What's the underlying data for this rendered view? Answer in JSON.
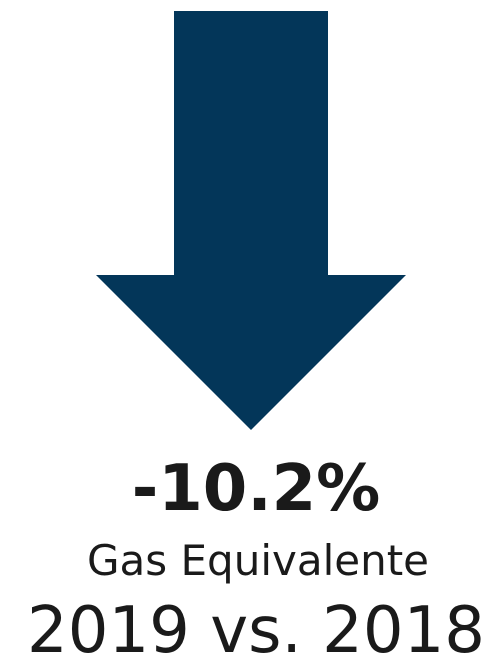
{
  "headline": {
    "value": "-10.2%",
    "label": "Gas Equivalente",
    "period": "2019 vs. 2018"
  }
}
